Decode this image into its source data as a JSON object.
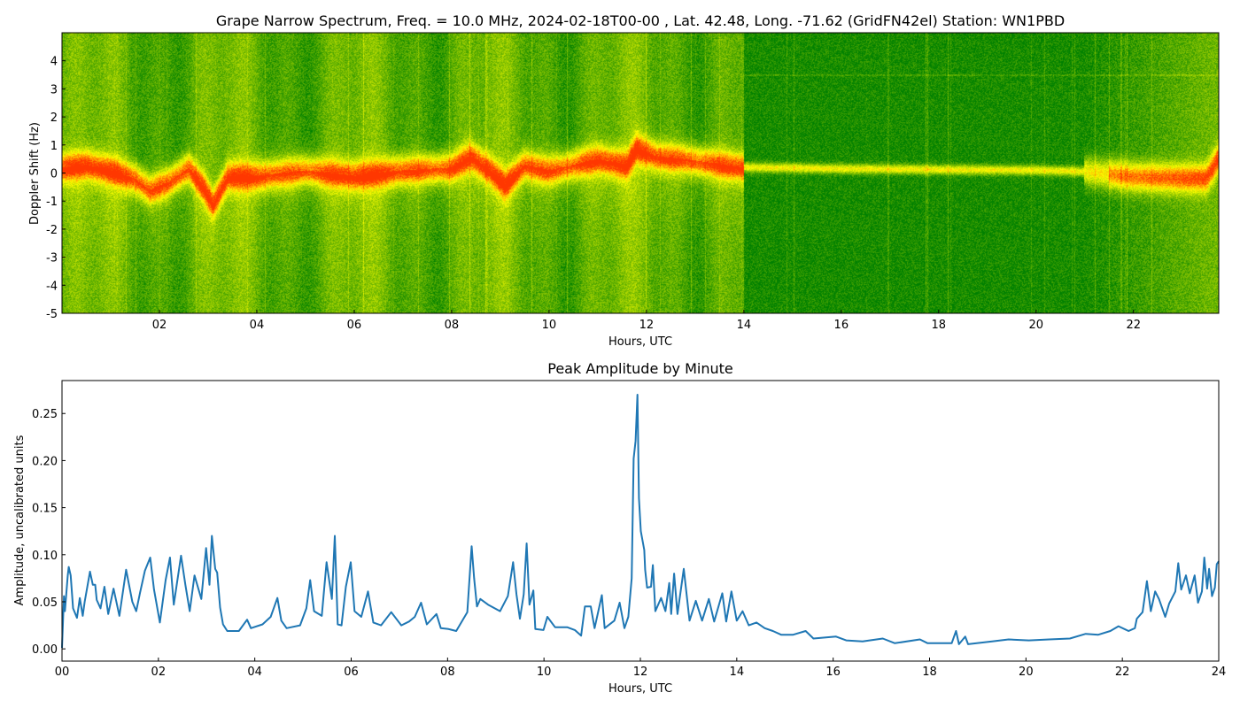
{
  "chart_data": [
    {
      "type": "heatmap",
      "title": "Grape Narrow Spectrum, Freq. = 10.0 MHz, 2024-02-18T00-00 , Lat.  42.48, Long. -71.62 (GridFN42el) Station: WN1PBD",
      "xlabel": "Hours, UTC",
      "ylabel": "Doppler Shift (Hz)",
      "xlim": [
        0,
        23.75
      ],
      "ylim": [
        -5,
        5
      ],
      "xticks": [
        2,
        4,
        6,
        8,
        10,
        12,
        14,
        16,
        18,
        20,
        22
      ],
      "xtick_labels": [
        "02",
        "04",
        "06",
        "08",
        "10",
        "12",
        "14",
        "16",
        "18",
        "20",
        "22"
      ],
      "yticks": [
        4,
        3,
        2,
        1,
        0,
        -1,
        -2,
        -3,
        -4,
        -5
      ],
      "ytick_labels": [
        "4",
        "3",
        "2",
        "1",
        "0",
        "-1",
        "-2",
        "-3",
        "-4",
        "-5"
      ],
      "colormap": [
        "#007f00",
        "#ffff00",
        "#ff0000"
      ],
      "doppler_trace": [
        [
          0,
          0.2
        ],
        [
          0.5,
          0.3
        ],
        [
          1,
          0.1
        ],
        [
          1.5,
          -0.2
        ],
        [
          1.8,
          -0.6
        ],
        [
          2.2,
          -0.3
        ],
        [
          2.6,
          0.2
        ],
        [
          2.9,
          -0.5
        ],
        [
          3.1,
          -1.1
        ],
        [
          3.4,
          -0.1
        ],
        [
          4,
          -0.1
        ],
        [
          5,
          0.1
        ],
        [
          6,
          -0.1
        ],
        [
          7,
          0.1
        ],
        [
          8,
          0.2
        ],
        [
          8.4,
          0.6
        ],
        [
          8.8,
          0.1
        ],
        [
          9.1,
          -0.4
        ],
        [
          9.5,
          0.3
        ],
        [
          10,
          0.1
        ],
        [
          11,
          0.5
        ],
        [
          11.6,
          0.3
        ],
        [
          11.8,
          0.9
        ],
        [
          12.2,
          0.6
        ],
        [
          12.8,
          0.5
        ],
        [
          13.2,
          0.4
        ],
        [
          14,
          0.2
        ],
        [
          16,
          0.15
        ],
        [
          18,
          0.12
        ],
        [
          20,
          0.1
        ],
        [
          21,
          0.05
        ],
        [
          22,
          -0.15
        ],
        [
          23,
          -0.2
        ],
        [
          23.5,
          -0.2
        ],
        [
          23.75,
          0.5
        ]
      ]
    },
    {
      "type": "line",
      "title": "Peak Amplitude by Minute",
      "xlabel": "Hours, UTC",
      "ylabel": "Amplitude, uncalibrated units",
      "xlim": [
        0,
        24
      ],
      "ylim": [
        -0.013,
        0.285
      ],
      "xticks": [
        0,
        2,
        4,
        6,
        8,
        10,
        12,
        14,
        16,
        18,
        20,
        22,
        24
      ],
      "xtick_labels": [
        "00",
        "02",
        "04",
        "06",
        "08",
        "10",
        "12",
        "14",
        "16",
        "18",
        "20",
        "22",
        "24"
      ],
      "yticks": [
        0,
        0.05,
        0.1,
        0.15,
        0.2,
        0.25
      ],
      "ytick_labels": [
        "0.00",
        "0.05",
        "0.10",
        "0.15",
        "0.20",
        "0.25"
      ],
      "color": "#1f77b4",
      "series": [
        {
          "name": "Peak Amplitude",
          "points": [
            [
              0,
              0.001
            ],
            [
              0.04,
              0.056
            ],
            [
              0.06,
              0.04
            ],
            [
              0.12,
              0.078
            ],
            [
              0.14,
              0.087
            ],
            [
              0.18,
              0.078
            ],
            [
              0.23,
              0.043
            ],
            [
              0.31,
              0.033
            ],
            [
              0.37,
              0.054
            ],
            [
              0.43,
              0.035
            ],
            [
              0.47,
              0.05
            ],
            [
              0.58,
              0.082
            ],
            [
              0.64,
              0.068
            ],
            [
              0.69,
              0.068
            ],
            [
              0.72,
              0.052
            ],
            [
              0.8,
              0.043
            ],
            [
              0.88,
              0.066
            ],
            [
              0.96,
              0.037
            ],
            [
              1.07,
              0.064
            ],
            [
              1.19,
              0.035
            ],
            [
              1.33,
              0.084
            ],
            [
              1.46,
              0.05
            ],
            [
              1.54,
              0.04
            ],
            [
              1.62,
              0.06
            ],
            [
              1.72,
              0.083
            ],
            [
              1.83,
              0.097
            ],
            [
              1.91,
              0.063
            ],
            [
              2.03,
              0.028
            ],
            [
              2.15,
              0.073
            ],
            [
              2.24,
              0.097
            ],
            [
              2.32,
              0.047
            ],
            [
              2.47,
              0.099
            ],
            [
              2.56,
              0.068
            ],
            [
              2.65,
              0.04
            ],
            [
              2.75,
              0.078
            ],
            [
              2.89,
              0.053
            ],
            [
              2.99,
              0.107
            ],
            [
              3.06,
              0.068
            ],
            [
              3.11,
              0.12
            ],
            [
              3.18,
              0.085
            ],
            [
              3.22,
              0.081
            ],
            [
              3.28,
              0.044
            ],
            [
              3.34,
              0.026
            ],
            [
              3.43,
              0.019
            ],
            [
              3.67,
              0.019
            ],
            [
              3.84,
              0.031
            ],
            [
              3.92,
              0.022
            ],
            [
              4.16,
              0.026
            ],
            [
              4.33,
              0.034
            ],
            [
              4.47,
              0.054
            ],
            [
              4.55,
              0.03
            ],
            [
              4.66,
              0.022
            ],
            [
              4.94,
              0.025
            ],
            [
              5.07,
              0.043
            ],
            [
              5.15,
              0.073
            ],
            [
              5.23,
              0.04
            ],
            [
              5.39,
              0.035
            ],
            [
              5.49,
              0.092
            ],
            [
              5.6,
              0.053
            ],
            [
              5.66,
              0.12
            ],
            [
              5.72,
              0.026
            ],
            [
              5.8,
              0.025
            ],
            [
              5.89,
              0.066
            ],
            [
              5.99,
              0.092
            ],
            [
              6.07,
              0.04
            ],
            [
              6.21,
              0.034
            ],
            [
              6.35,
              0.061
            ],
            [
              6.46,
              0.028
            ],
            [
              6.62,
              0.025
            ],
            [
              6.83,
              0.039
            ],
            [
              7.04,
              0.025
            ],
            [
              7.2,
              0.029
            ],
            [
              7.32,
              0.034
            ],
            [
              7.45,
              0.049
            ],
            [
              7.57,
              0.026
            ],
            [
              7.77,
              0.037
            ],
            [
              7.86,
              0.022
            ],
            [
              8.02,
              0.021
            ],
            [
              8.18,
              0.019
            ],
            [
              8.41,
              0.039
            ],
            [
              8.5,
              0.109
            ],
            [
              8.55,
              0.075
            ],
            [
              8.61,
              0.045
            ],
            [
              8.68,
              0.053
            ],
            [
              8.84,
              0.047
            ],
            [
              9.09,
              0.04
            ],
            [
              9.25,
              0.056
            ],
            [
              9.36,
              0.092
            ],
            [
              9.43,
              0.058
            ],
            [
              9.5,
              0.032
            ],
            [
              9.58,
              0.058
            ],
            [
              9.64,
              0.112
            ],
            [
              9.7,
              0.047
            ],
            [
              9.78,
              0.062
            ],
            [
              9.82,
              0.021
            ],
            [
              9.99,
              0.02
            ],
            [
              10.07,
              0.034
            ],
            [
              10.23,
              0.023
            ],
            [
              10.48,
              0.023
            ],
            [
              10.64,
              0.02
            ],
            [
              10.77,
              0.014
            ],
            [
              10.85,
              0.045
            ],
            [
              10.97,
              0.045
            ],
            [
              11.05,
              0.022
            ],
            [
              11.2,
              0.057
            ],
            [
              11.26,
              0.022
            ],
            [
              11.46,
              0.03
            ],
            [
              11.57,
              0.049
            ],
            [
              11.67,
              0.022
            ],
            [
              11.75,
              0.034
            ],
            [
              11.82,
              0.075
            ],
            [
              11.86,
              0.202
            ],
            [
              11.9,
              0.221
            ],
            [
              11.94,
              0.27
            ],
            [
              11.97,
              0.16
            ],
            [
              12.01,
              0.125
            ],
            [
              12.08,
              0.105
            ],
            [
              12.1,
              0.084
            ],
            [
              12.14,
              0.065
            ],
            [
              12.22,
              0.066
            ],
            [
              12.26,
              0.089
            ],
            [
              12.31,
              0.04
            ],
            [
              12.43,
              0.054
            ],
            [
              12.52,
              0.04
            ],
            [
              12.6,
              0.07
            ],
            [
              12.64,
              0.037
            ],
            [
              12.7,
              0.08
            ],
            [
              12.77,
              0.037
            ],
            [
              12.9,
              0.085
            ],
            [
              13.02,
              0.03
            ],
            [
              13.15,
              0.051
            ],
            [
              13.28,
              0.03
            ],
            [
              13.42,
              0.053
            ],
            [
              13.53,
              0.029
            ],
            [
              13.7,
              0.059
            ],
            [
              13.78,
              0.029
            ],
            [
              13.89,
              0.061
            ],
            [
              14.0,
              0.03
            ],
            [
              14.12,
              0.04
            ],
            [
              14.25,
              0.025
            ],
            [
              14.41,
              0.028
            ],
            [
              14.58,
              0.022
            ],
            [
              14.75,
              0.019
            ],
            [
              14.92,
              0.015
            ],
            [
              15.17,
              0.015
            ],
            [
              15.43,
              0.019
            ],
            [
              15.59,
              0.011
            ],
            [
              16.06,
              0.013
            ],
            [
              16.27,
              0.009
            ],
            [
              16.61,
              0.008
            ],
            [
              17.03,
              0.011
            ],
            [
              17.28,
              0.006
            ],
            [
              17.8,
              0.01
            ],
            [
              17.96,
              0.006
            ],
            [
              18.46,
              0.006
            ],
            [
              18.55,
              0.019
            ],
            [
              18.61,
              0.005
            ],
            [
              18.74,
              0.013
            ],
            [
              18.8,
              0.005
            ],
            [
              19.3,
              0.008
            ],
            [
              19.64,
              0.01
            ],
            [
              20.06,
              0.009
            ],
            [
              20.48,
              0.01
            ],
            [
              20.91,
              0.011
            ],
            [
              21.24,
              0.016
            ],
            [
              21.5,
              0.015
            ],
            [
              21.75,
              0.019
            ],
            [
              21.92,
              0.024
            ],
            [
              22.13,
              0.019
            ],
            [
              22.26,
              0.022
            ],
            [
              22.3,
              0.032
            ],
            [
              22.42,
              0.039
            ],
            [
              22.51,
              0.072
            ],
            [
              22.59,
              0.04
            ],
            [
              22.68,
              0.061
            ],
            [
              22.76,
              0.053
            ],
            [
              22.89,
              0.034
            ],
            [
              22.97,
              0.048
            ],
            [
              23.1,
              0.061
            ],
            [
              23.16,
              0.091
            ],
            [
              23.22,
              0.063
            ],
            [
              23.32,
              0.078
            ],
            [
              23.4,
              0.059
            ],
            [
              23.5,
              0.078
            ],
            [
              23.57,
              0.049
            ],
            [
              23.65,
              0.061
            ],
            [
              23.7,
              0.097
            ],
            [
              23.76,
              0.064
            ],
            [
              23.8,
              0.085
            ],
            [
              23.86,
              0.056
            ],
            [
              23.92,
              0.065
            ],
            [
              23.96,
              0.09
            ],
            [
              24.0,
              0.093
            ]
          ]
        }
      ]
    }
  ]
}
